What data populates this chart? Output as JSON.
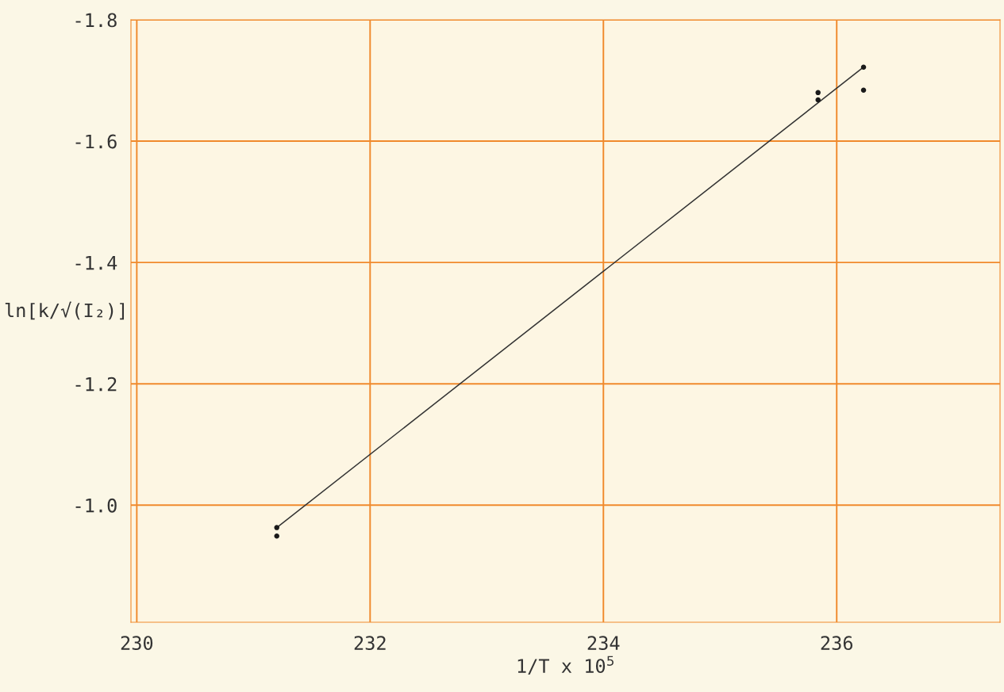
{
  "chart_data": {
    "type": "scatter",
    "xlabel": "1/T x 10$^{5}$",
    "ylabel": "ln[k/√(I₂)]",
    "xlim": [
      229.95,
      237.4
    ],
    "xticks": [
      230,
      232,
      234,
      236
    ],
    "ylim": [
      -0.807,
      -1.8
    ],
    "yticks": [
      -1.8,
      -1.6,
      -1.4,
      -1.2,
      {
        "value": -1.0,
        "label": "-1.0"
      }
    ],
    "grid": true,
    "marker": "circle",
    "series": [
      {
        "color": "#1a1a1a",
        "x": [
          231.2,
          231.2,
          235.84,
          235.84,
          236.23,
          236.23
        ],
        "values": [
          -0.963,
          -0.949,
          -1.68,
          -1.668,
          -1.722,
          -1.684
        ]
      },
      {
        "type": "line",
        "color": "#333333",
        "x": [
          231.2,
          236.23
        ],
        "values": [
          -0.963,
          -1.722
        ],
        "marker": "none",
        "line_style": "solid"
      }
    ]
  }
}
